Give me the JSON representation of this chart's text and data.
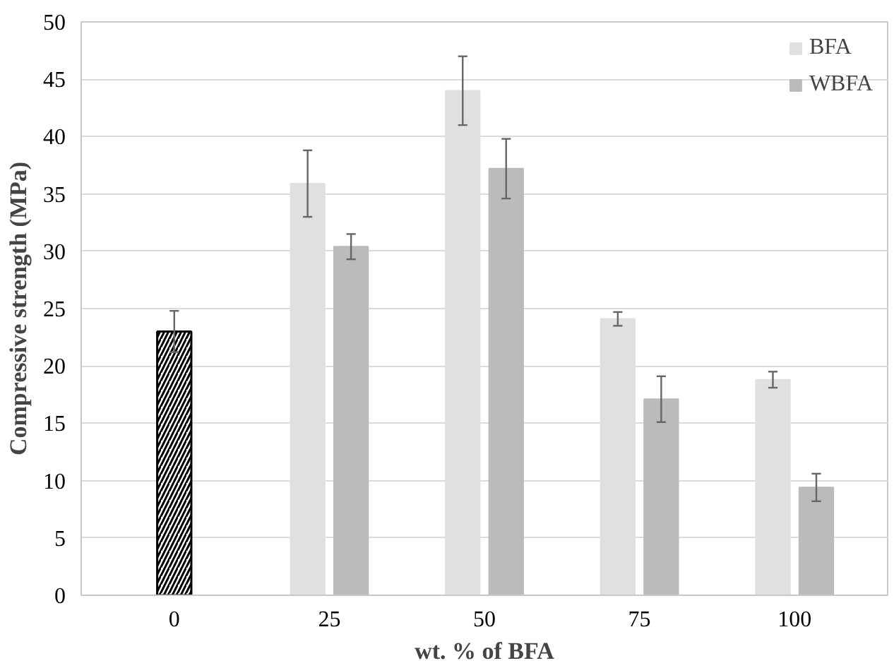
{
  "chart_data": {
    "type": "bar",
    "xlabel": "wt. % of BFA",
    "ylabel": "Compressive strength (MPa)",
    "categories": [
      "0",
      "25",
      "50",
      "75",
      "100"
    ],
    "series": [
      {
        "color": "#000000",
        "values": [
          23,
          null,
          null,
          null,
          null
        ],
        "errors": [
          1.8,
          null,
          null,
          null,
          null
        ]
      },
      {
        "name": "BFA",
        "color": "#e0e0e0",
        "values": [
          null,
          35.9,
          44,
          24.1,
          18.8
        ],
        "errors": [
          null,
          2.9,
          3,
          0.6,
          0.7
        ]
      },
      {
        "name": "WBFA",
        "color": "#bbbbbb",
        "values": [
          null,
          30.4,
          37.2,
          17.1,
          9.4
        ],
        "errors": [
          null,
          1.1,
          2.6,
          2,
          1.2
        ]
      }
    ],
    "ylim": [
      0,
      50
    ],
    "yticks": [
      0,
      5,
      10,
      15,
      20,
      25,
      30,
      35,
      40,
      45,
      50
    ],
    "grid": "y",
    "legend": "top right"
  }
}
